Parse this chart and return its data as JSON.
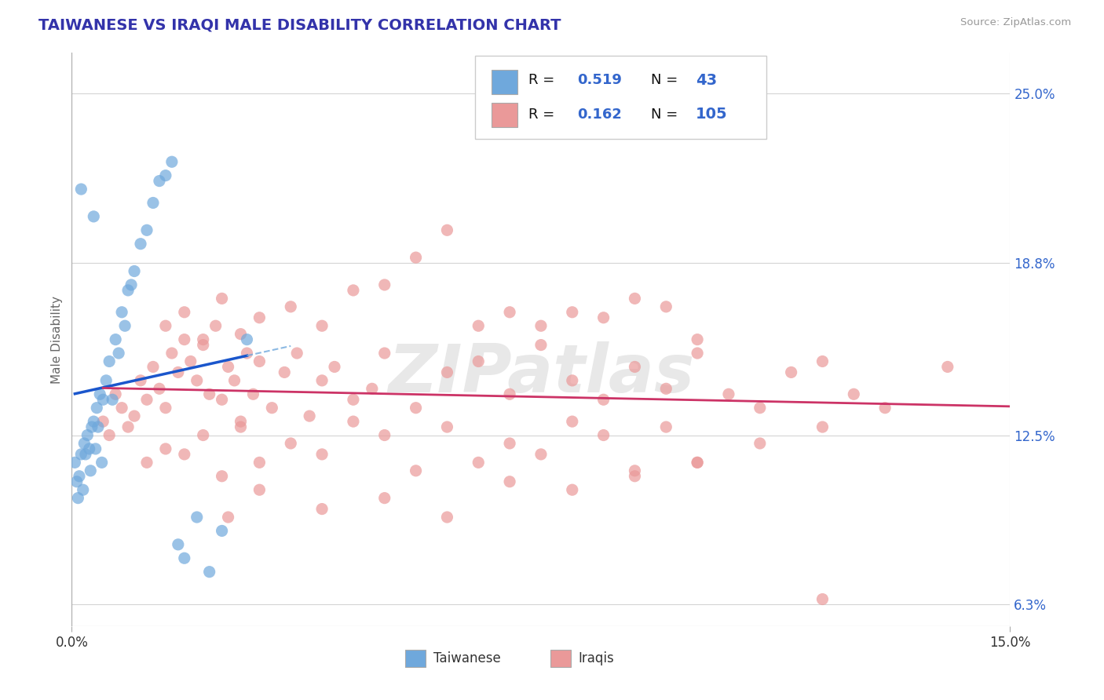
{
  "title": "TAIWANESE VS IRAQI MALE DISABILITY CORRELATION CHART",
  "source": "Source: ZipAtlas.com",
  "ylabel": "Male Disability",
  "xlim": [
    0.0,
    15.0
  ],
  "ylim": [
    5.5,
    26.5
  ],
  "taiwan_R": 0.519,
  "taiwan_N": 43,
  "iraq_R": 0.162,
  "iraq_N": 105,
  "taiwan_color": "#6fa8dc",
  "iraq_color": "#ea9999",
  "taiwan_trend_color": "#1a56cc",
  "iraq_trend_color": "#cc3366",
  "watermark_text": "ZIPatlas",
  "y_ticks": [
    6.3,
    12.5,
    18.8,
    25.0
  ],
  "y_tick_labels": [
    "6.3%",
    "12.5%",
    "18.8%",
    "25.0%"
  ],
  "taiwan_x": [
    0.05,
    0.08,
    0.1,
    0.12,
    0.15,
    0.18,
    0.2,
    0.22,
    0.25,
    0.28,
    0.3,
    0.32,
    0.35,
    0.38,
    0.4,
    0.42,
    0.45,
    0.48,
    0.5,
    0.55,
    0.6,
    0.65,
    0.7,
    0.75,
    0.8,
    0.85,
    0.9,
    0.95,
    1.0,
    1.1,
    1.2,
    1.3,
    1.4,
    1.5,
    1.6,
    1.7,
    1.8,
    2.0,
    2.2,
    2.4,
    0.15,
    0.35,
    2.8
  ],
  "taiwan_y": [
    11.5,
    10.8,
    10.2,
    11.0,
    11.8,
    10.5,
    12.2,
    11.8,
    12.5,
    12.0,
    11.2,
    12.8,
    13.0,
    12.0,
    13.5,
    12.8,
    14.0,
    11.5,
    13.8,
    14.5,
    15.2,
    13.8,
    16.0,
    15.5,
    17.0,
    16.5,
    17.8,
    18.0,
    18.5,
    19.5,
    20.0,
    21.0,
    21.8,
    22.0,
    22.5,
    8.5,
    8.0,
    9.5,
    7.5,
    9.0,
    21.5,
    20.5,
    16.0
  ],
  "iraq_x": [
    0.5,
    0.6,
    0.7,
    0.8,
    0.9,
    1.0,
    1.1,
    1.2,
    1.3,
    1.4,
    1.5,
    1.6,
    1.7,
    1.8,
    1.9,
    2.0,
    2.1,
    2.2,
    2.3,
    2.4,
    2.5,
    2.6,
    2.7,
    2.8,
    2.9,
    3.0,
    3.2,
    3.4,
    3.6,
    3.8,
    4.0,
    4.2,
    4.5,
    4.8,
    5.0,
    5.5,
    6.0,
    6.5,
    7.0,
    7.5,
    8.0,
    8.5,
    9.0,
    9.5,
    10.0,
    10.5,
    11.0,
    11.5,
    12.0,
    12.5,
    1.5,
    1.8,
    2.1,
    2.4,
    2.7,
    3.0,
    3.5,
    4.0,
    4.5,
    5.0,
    5.5,
    6.0,
    6.5,
    7.0,
    7.5,
    8.0,
    8.5,
    9.0,
    9.5,
    10.0,
    1.2,
    1.5,
    1.8,
    2.1,
    2.4,
    2.7,
    3.0,
    3.5,
    4.0,
    4.5,
    5.0,
    5.5,
    6.0,
    6.5,
    7.0,
    7.5,
    8.0,
    8.5,
    9.0,
    9.5,
    10.0,
    11.0,
    12.0,
    13.0,
    14.0,
    2.5,
    3.0,
    4.0,
    5.0,
    6.0,
    7.0,
    8.0,
    9.0,
    10.0,
    12.0
  ],
  "iraq_y": [
    13.0,
    12.5,
    14.0,
    13.5,
    12.8,
    13.2,
    14.5,
    13.8,
    15.0,
    14.2,
    13.5,
    15.5,
    14.8,
    16.0,
    15.2,
    14.5,
    15.8,
    14.0,
    16.5,
    13.8,
    15.0,
    14.5,
    13.0,
    15.5,
    14.0,
    15.2,
    13.5,
    14.8,
    15.5,
    13.2,
    14.5,
    15.0,
    13.8,
    14.2,
    15.5,
    13.5,
    14.8,
    15.2,
    14.0,
    15.8,
    14.5,
    13.8,
    15.0,
    14.2,
    15.5,
    14.0,
    13.5,
    14.8,
    15.2,
    14.0,
    16.5,
    17.0,
    16.0,
    17.5,
    16.2,
    16.8,
    17.2,
    16.5,
    17.8,
    18.0,
    19.0,
    20.0,
    16.5,
    17.0,
    16.5,
    17.0,
    16.8,
    17.5,
    17.2,
    16.0,
    11.5,
    12.0,
    11.8,
    12.5,
    11.0,
    12.8,
    11.5,
    12.2,
    11.8,
    13.0,
    12.5,
    11.2,
    12.8,
    11.5,
    12.2,
    11.8,
    13.0,
    12.5,
    11.2,
    12.8,
    11.5,
    12.2,
    12.8,
    13.5,
    15.0,
    9.5,
    10.5,
    9.8,
    10.2,
    9.5,
    10.8,
    10.5,
    11.0,
    11.5,
    6.5
  ]
}
